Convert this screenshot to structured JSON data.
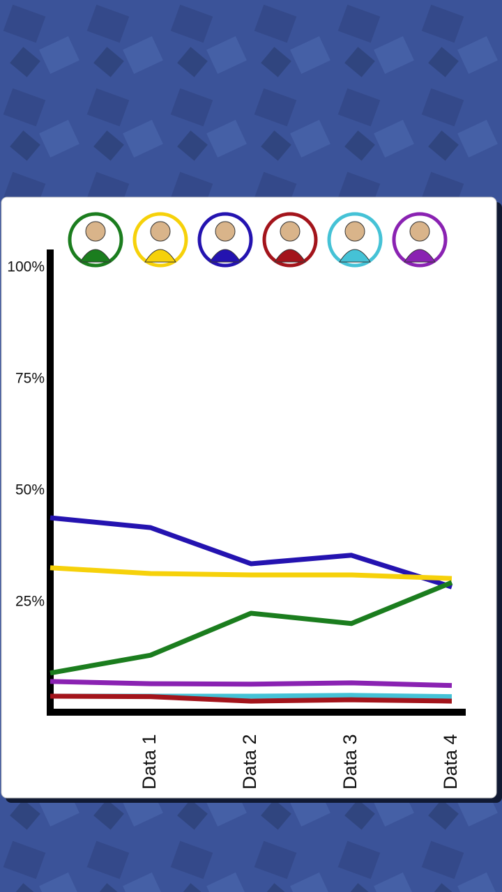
{
  "chart_data": {
    "type": "line",
    "categories": [
      null,
      "Data 1",
      "Data 2",
      "Data 3",
      "Data 4"
    ],
    "series": [
      {
        "color": "#1b7d1e",
        "values": [
          9.1,
          13.1,
          22.5,
          20.2,
          29.4
        ]
      },
      {
        "color": "#f6d10a",
        "values": [
          32.7,
          31.4,
          31.1,
          31.1,
          30.3
        ]
      },
      {
        "color": "#2413b0",
        "values": [
          43.9,
          41.7,
          33.6,
          35.5,
          28.4
        ]
      },
      {
        "color": "#a3141b",
        "values": [
          3.9,
          3.8,
          2.8,
          3.1,
          2.8
        ]
      },
      {
        "color": "#45c2d6",
        "values": [
          3.9,
          3.9,
          3.9,
          4.1,
          3.8
        ]
      },
      {
        "color": "#8a22b2",
        "values": [
          7.2,
          6.7,
          6.6,
          6.9,
          6.3
        ]
      }
    ],
    "ylim": [
      0,
      100
    ],
    "yticks": [
      {
        "value": 25,
        "label": "25%"
      },
      {
        "value": 50,
        "label": "50%"
      },
      {
        "value": 75,
        "label": "75%"
      },
      {
        "value": 100,
        "label": "100%"
      }
    ],
    "grid": false
  }
}
